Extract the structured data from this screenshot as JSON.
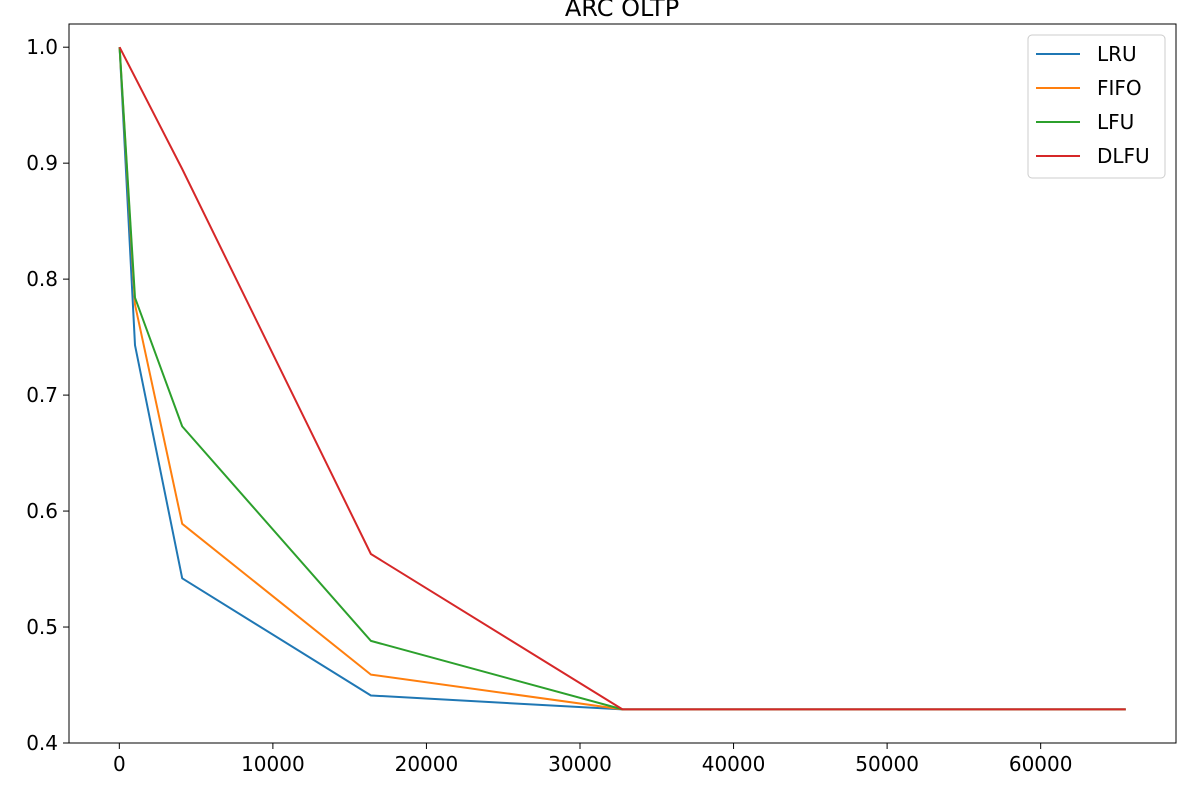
{
  "chart_data": {
    "type": "line",
    "title": "ARC OLTP",
    "xlabel": "",
    "ylabel": "",
    "xlim": [
      -3277,
      68813
    ],
    "ylim": [
      0.4,
      1.02
    ],
    "x": [
      16,
      1024,
      4096,
      16384,
      32768,
      65536
    ],
    "xticks": [
      0,
      10000,
      20000,
      30000,
      40000,
      50000,
      60000
    ],
    "xtick_labels": [
      "0",
      "10000",
      "20000",
      "30000",
      "40000",
      "50000",
      "60000"
    ],
    "yticks": [
      0.4,
      0.5,
      0.6,
      0.7,
      0.8,
      0.9,
      1.0
    ],
    "ytick_labels": [
      "0.4",
      "0.5",
      "0.6",
      "0.7",
      "0.8",
      "0.9",
      "1.0"
    ],
    "grid": false,
    "legend_position": "top-right",
    "series": [
      {
        "name": "LRU",
        "color": "#1f77b4",
        "values": [
          1.0,
          0.743,
          0.542,
          0.441,
          0.429,
          0.429
        ]
      },
      {
        "name": "FIFO",
        "color": "#ff7f0e",
        "values": [
          1.0,
          0.778,
          0.589,
          0.459,
          0.429,
          0.429
        ]
      },
      {
        "name": "LFU",
        "color": "#2ca02c",
        "values": [
          1.0,
          0.784,
          0.673,
          0.488,
          0.429,
          0.429
        ]
      },
      {
        "name": "DLFU",
        "color": "#d62728",
        "values": [
          1.0,
          null,
          0.895,
          0.563,
          0.429,
          0.429
        ]
      }
    ]
  }
}
